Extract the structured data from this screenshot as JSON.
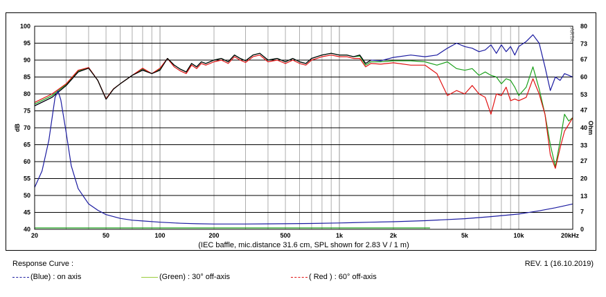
{
  "chart_data": {
    "type": "line",
    "caption": "(IEC baffle, mic.distance 31.6 cm, SPL shown for 2.83 V / 1 m)",
    "xscale": "log",
    "xlim": [
      20,
      20000
    ],
    "x_ticks": [
      {
        "value": 20,
        "label": "20"
      },
      {
        "value": 50,
        "label": "50"
      },
      {
        "value": 100,
        "label": "100"
      },
      {
        "value": 200,
        "label": "200"
      },
      {
        "value": 500,
        "label": "500"
      },
      {
        "value": 1000,
        "label": "1k"
      },
      {
        "value": 2000,
        "label": "2k"
      },
      {
        "value": 5000,
        "label": "5k"
      },
      {
        "value": 10000,
        "label": "10k"
      },
      {
        "value": 20000,
        "label": "20kHz"
      }
    ],
    "ylabel_left": "dB",
    "ylim_left": [
      40,
      100
    ],
    "y_ticks_left": [
      40,
      45,
      50,
      55,
      60,
      65,
      70,
      75,
      80,
      85,
      90,
      95,
      100
    ],
    "ylabel_right": "Ohm",
    "ylim_right": [
      0,
      80
    ],
    "y_ticks_right": [
      0,
      7,
      13,
      20,
      27,
      33,
      40,
      47,
      53,
      60,
      67,
      73,
      80
    ],
    "colors": {
      "blue": "#1a1aa0",
      "green": "#1aa01a",
      "red": "#e01010",
      "black": "#000000",
      "grid": "#999999"
    },
    "series": [
      {
        "name": "on axis",
        "color": "#1a1aa0",
        "x": [
          20,
          25,
          30,
          35,
          40,
          45,
          50,
          55,
          60,
          70,
          80,
          90,
          100,
          110,
          120,
          130,
          140,
          150,
          160,
          170,
          180,
          200,
          220,
          240,
          260,
          280,
          300,
          330,
          360,
          400,
          450,
          500,
          550,
          600,
          650,
          700,
          750,
          800,
          900,
          1000,
          1100,
          1200,
          1300,
          1400,
          1500,
          1700,
          2000,
          2500,
          3000,
          3500,
          4000,
          4500,
          5000,
          5500,
          6000,
          6500,
          7000,
          7500,
          8000,
          8500,
          9000,
          9500,
          10000,
          11000,
          12000,
          13000,
          14000,
          15000,
          16000,
          17000,
          18000,
          19000,
          20000
        ],
        "y": [
          76.5,
          79,
          82.5,
          86.5,
          87.8,
          84,
          78.5,
          81.5,
          83,
          85.5,
          87.2,
          86,
          87.2,
          90.5,
          88.5,
          87.3,
          86.5,
          89,
          88,
          89.5,
          89,
          90,
          90.5,
          89.5,
          91.5,
          90.5,
          89.8,
          91.5,
          92,
          90,
          90.5,
          89.5,
          90.5,
          89.5,
          89,
          90.5,
          91,
          91.5,
          92,
          91.5,
          91.5,
          91,
          91.5,
          89,
          90,
          89.8,
          90.8,
          91.5,
          91,
          91.5,
          93.5,
          95,
          94,
          93.5,
          92.5,
          93,
          94.5,
          92,
          94.5,
          92.5,
          94,
          91.5,
          94,
          95.5,
          97.5,
          95,
          88,
          81,
          85,
          84,
          86,
          85.5,
          85
        ]
      },
      {
        "name": "30° off-axis",
        "color": "#1aa01a",
        "x": [
          20,
          25,
          30,
          35,
          40,
          45,
          50,
          55,
          60,
          70,
          80,
          90,
          100,
          110,
          120,
          130,
          140,
          150,
          160,
          170,
          180,
          200,
          220,
          240,
          260,
          280,
          300,
          330,
          360,
          400,
          450,
          500,
          550,
          600,
          650,
          700,
          750,
          800,
          900,
          1000,
          1100,
          1200,
          1300,
          1400,
          1500,
          1700,
          2000,
          2500,
          3000,
          3500,
          4000,
          4500,
          5000,
          5500,
          6000,
          6500,
          7000,
          7500,
          8000,
          8500,
          9000,
          9500,
          10000,
          11000,
          12000,
          13000,
          14000,
          15000,
          16000,
          17000,
          18000,
          19000,
          20000
        ],
        "y": [
          77,
          79.5,
          82.8,
          86.8,
          87.8,
          84,
          78.6,
          81.5,
          83,
          85.5,
          87.4,
          86,
          87.4,
          90.5,
          88.5,
          87.3,
          86.5,
          89,
          88,
          89.5,
          89,
          90,
          90.5,
          89.5,
          91.5,
          90.5,
          89.8,
          91.5,
          92,
          90,
          90.5,
          89.5,
          90.5,
          89.5,
          89,
          90.5,
          91,
          91.5,
          92,
          91.5,
          91.5,
          91,
          91.2,
          88.5,
          89.5,
          89.5,
          89.8,
          89.8,
          89.5,
          88.5,
          89.5,
          87.5,
          87,
          87.5,
          85.5,
          86.5,
          85.5,
          85,
          83,
          84.5,
          84,
          82,
          79.5,
          82,
          88,
          81.5,
          74,
          65,
          58.5,
          66,
          74,
          72,
          73
        ]
      },
      {
        "name": "60° off-axis",
        "color": "#e01010",
        "x": [
          20,
          25,
          30,
          35,
          40,
          45,
          50,
          55,
          60,
          70,
          80,
          90,
          100,
          110,
          120,
          130,
          140,
          150,
          160,
          170,
          180,
          200,
          220,
          240,
          260,
          280,
          300,
          330,
          360,
          400,
          450,
          500,
          550,
          600,
          650,
          700,
          750,
          800,
          900,
          1000,
          1100,
          1200,
          1300,
          1400,
          1500,
          1700,
          2000,
          2500,
          3000,
          3500,
          4000,
          4500,
          5000,
          5500,
          6000,
          6500,
          7000,
          7500,
          8000,
          8500,
          9000,
          9500,
          10000,
          11000,
          12000,
          13000,
          14000,
          15000,
          16000,
          17000,
          18000,
          19000,
          20000
        ],
        "y": [
          77.5,
          80,
          83,
          87,
          87.8,
          84,
          78.6,
          81.5,
          83,
          85.5,
          87.6,
          86,
          87.6,
          90.5,
          88,
          86.8,
          86,
          88.5,
          87.5,
          89,
          88.5,
          89.5,
          90,
          89,
          91,
          90,
          89.3,
          91,
          91.5,
          89.5,
          90,
          89,
          90,
          89,
          88.5,
          90,
          90.5,
          91,
          91.5,
          91,
          91,
          90.5,
          90.5,
          88,
          89,
          88.8,
          89.2,
          88.5,
          88.5,
          86,
          79.5,
          81,
          80,
          82.5,
          80,
          79,
          74,
          80,
          79.5,
          82,
          78,
          78.5,
          78,
          79,
          84.5,
          80,
          74,
          62,
          58,
          64,
          69,
          71,
          73
        ]
      },
      {
        "name": "",
        "color": "#000000",
        "x": [
          20,
          25,
          30,
          35,
          40,
          45,
          50,
          55,
          60,
          70,
          80,
          90,
          100,
          110,
          120,
          130,
          140,
          150,
          160,
          170,
          180,
          200,
          220,
          240,
          260,
          280,
          300,
          330,
          360,
          400,
          450,
          500,
          550,
          600,
          650,
          700,
          750,
          800,
          900,
          1000,
          1100,
          1200,
          1300,
          1400,
          1500
        ],
        "y": [
          76.5,
          79,
          82.5,
          86.5,
          87.6,
          84,
          78.4,
          81.4,
          83,
          85.5,
          87,
          86,
          87,
          90.5,
          88.5,
          87.3,
          86.5,
          89,
          88,
          89.5,
          89,
          90,
          90.5,
          89.5,
          91.5,
          90.5,
          89.8,
          91.5,
          92,
          90,
          90.5,
          89.5,
          90.5,
          89.5,
          89,
          90.5,
          91,
          91.5,
          92,
          91.5,
          91.5,
          91,
          91.5,
          89,
          90
        ]
      },
      {
        "name": "impedance",
        "color": "#1a1aa0",
        "axis": "right",
        "x": [
          20,
          22,
          24,
          26,
          27,
          28,
          30,
          32,
          35,
          40,
          45,
          50,
          60,
          70,
          80,
          100,
          130,
          160,
          200,
          300,
          500,
          700,
          1000,
          1500,
          2000,
          3000,
          5000,
          7000,
          10000,
          13000,
          16000,
          20000
        ],
        "y": [
          16.5,
          23,
          35,
          52,
          54.5,
          51,
          38,
          25,
          16,
          10,
          7.5,
          5.8,
          4.3,
          3.6,
          3.3,
          2.8,
          2.4,
          2.2,
          2.1,
          2.1,
          2.2,
          2.3,
          2.5,
          2.8,
          3,
          3.4,
          4.2,
          5,
          6,
          7.3,
          8.5,
          10
        ]
      },
      {
        "name": "",
        "color": "#1aa01a",
        "x": [
          20,
          3200
        ],
        "y": [
          40.4,
          40.4
        ]
      }
    ]
  },
  "caption": "(IEC baffle, mic.distance 31.6 cm, SPL shown for 2.83 V / 1 m)",
  "corner_mark": "ARTA",
  "legend": {
    "title": "Response Curve :",
    "items": [
      {
        "style": "-------",
        "color_word": "(Blue)",
        "text": ": on axis",
        "color": "#1a1aa0"
      },
      {
        "style": "-------",
        "color_word": "(Green)",
        "text": ": 30° off-axis",
        "color": "#1aa01a"
      },
      {
        "style": "-------",
        "color_word": "( Red )",
        "text": ": 60° off-axis",
        "color": "#e01010"
      }
    ]
  },
  "revision": "REV. 1 (16.10.2019)"
}
